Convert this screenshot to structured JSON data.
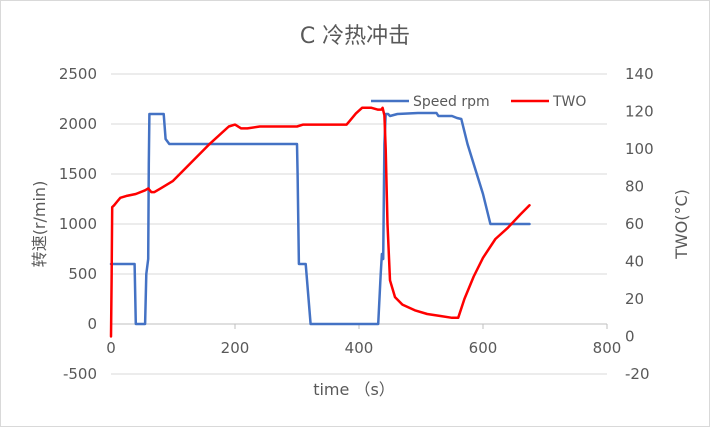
{
  "chart_data": {
    "type": "line",
    "title": "C 冷热冲击",
    "xlabel": "time （s）",
    "ylabel_left": "转速(r/min)",
    "ylabel_right": "TWO(°C)",
    "xlim": [
      0,
      800
    ],
    "ylim_left": [
      -500,
      2500
    ],
    "ylim_right": [
      -20,
      140
    ],
    "x_ticks": [
      "0",
      "200",
      "400",
      "600",
      "800"
    ],
    "y_left_ticks": [
      "-500",
      "0",
      "500",
      "1000",
      "1500",
      "2000",
      "2500"
    ],
    "y_right_ticks": [
      "-20",
      "0",
      "20",
      "40",
      "60",
      "80",
      "100",
      "120",
      "140"
    ],
    "grid": "horizontal",
    "legend_position": "top-right",
    "series": [
      {
        "name": "Speed rpm",
        "axis": "left",
        "color": "#4472c4",
        "points": [
          [
            0,
            600
          ],
          [
            1,
            600
          ],
          [
            38,
            600
          ],
          [
            40,
            0
          ],
          [
            55,
            0
          ],
          [
            57,
            500
          ],
          [
            60,
            650
          ],
          [
            61,
            1600
          ],
          [
            62,
            2100
          ],
          [
            85,
            2100
          ],
          [
            88,
            1850
          ],
          [
            94,
            1800
          ],
          [
            300,
            1800
          ],
          [
            301,
            1500
          ],
          [
            303,
            600
          ],
          [
            314,
            600
          ],
          [
            322,
            0
          ],
          [
            431,
            0
          ],
          [
            435,
            500
          ],
          [
            437,
            700
          ],
          [
            439,
            650
          ],
          [
            441,
            1800
          ],
          [
            443,
            2100
          ],
          [
            447,
            2100
          ],
          [
            450,
            2080
          ],
          [
            462,
            2100
          ],
          [
            495,
            2110
          ],
          [
            525,
            2110
          ],
          [
            528,
            2080
          ],
          [
            535,
            2080
          ],
          [
            550,
            2080
          ],
          [
            558,
            2060
          ],
          [
            565,
            2050
          ],
          [
            575,
            1800
          ],
          [
            600,
            1300
          ],
          [
            612,
            1000
          ],
          [
            625,
            1000
          ],
          [
            675,
            1000
          ]
        ]
      },
      {
        "name": "TWO",
        "axis": "right",
        "color": "#ff0000",
        "points": [
          [
            0,
            0
          ],
          [
            1,
            30
          ],
          [
            2,
            69
          ],
          [
            5,
            70
          ],
          [
            10,
            72
          ],
          [
            15,
            74
          ],
          [
            25,
            75
          ],
          [
            40,
            76
          ],
          [
            55,
            78
          ],
          [
            60,
            79
          ],
          [
            65,
            77
          ],
          [
            70,
            77
          ],
          [
            80,
            79
          ],
          [
            100,
            83
          ],
          [
            130,
            93
          ],
          [
            160,
            103
          ],
          [
            190,
            112
          ],
          [
            200,
            113
          ],
          [
            210,
            111
          ],
          [
            220,
            111
          ],
          [
            240,
            112
          ],
          [
            260,
            112
          ],
          [
            280,
            112
          ],
          [
            300,
            112
          ],
          [
            310,
            113
          ],
          [
            320,
            113
          ],
          [
            340,
            113
          ],
          [
            360,
            113
          ],
          [
            380,
            113
          ],
          [
            385,
            115
          ],
          [
            395,
            119
          ],
          [
            405,
            122
          ],
          [
            420,
            122
          ],
          [
            430,
            121
          ],
          [
            436,
            121
          ],
          [
            438,
            122
          ],
          [
            441,
            118
          ],
          [
            443,
            100
          ],
          [
            446,
            60
          ],
          [
            450,
            30
          ],
          [
            458,
            21
          ],
          [
            470,
            17
          ],
          [
            490,
            14
          ],
          [
            510,
            12
          ],
          [
            530,
            11
          ],
          [
            550,
            10
          ],
          [
            560,
            10
          ],
          [
            570,
            20
          ],
          [
            585,
            32
          ],
          [
            600,
            42
          ],
          [
            620,
            52
          ],
          [
            640,
            58
          ],
          [
            660,
            65
          ],
          [
            675,
            70
          ]
        ]
      }
    ]
  }
}
